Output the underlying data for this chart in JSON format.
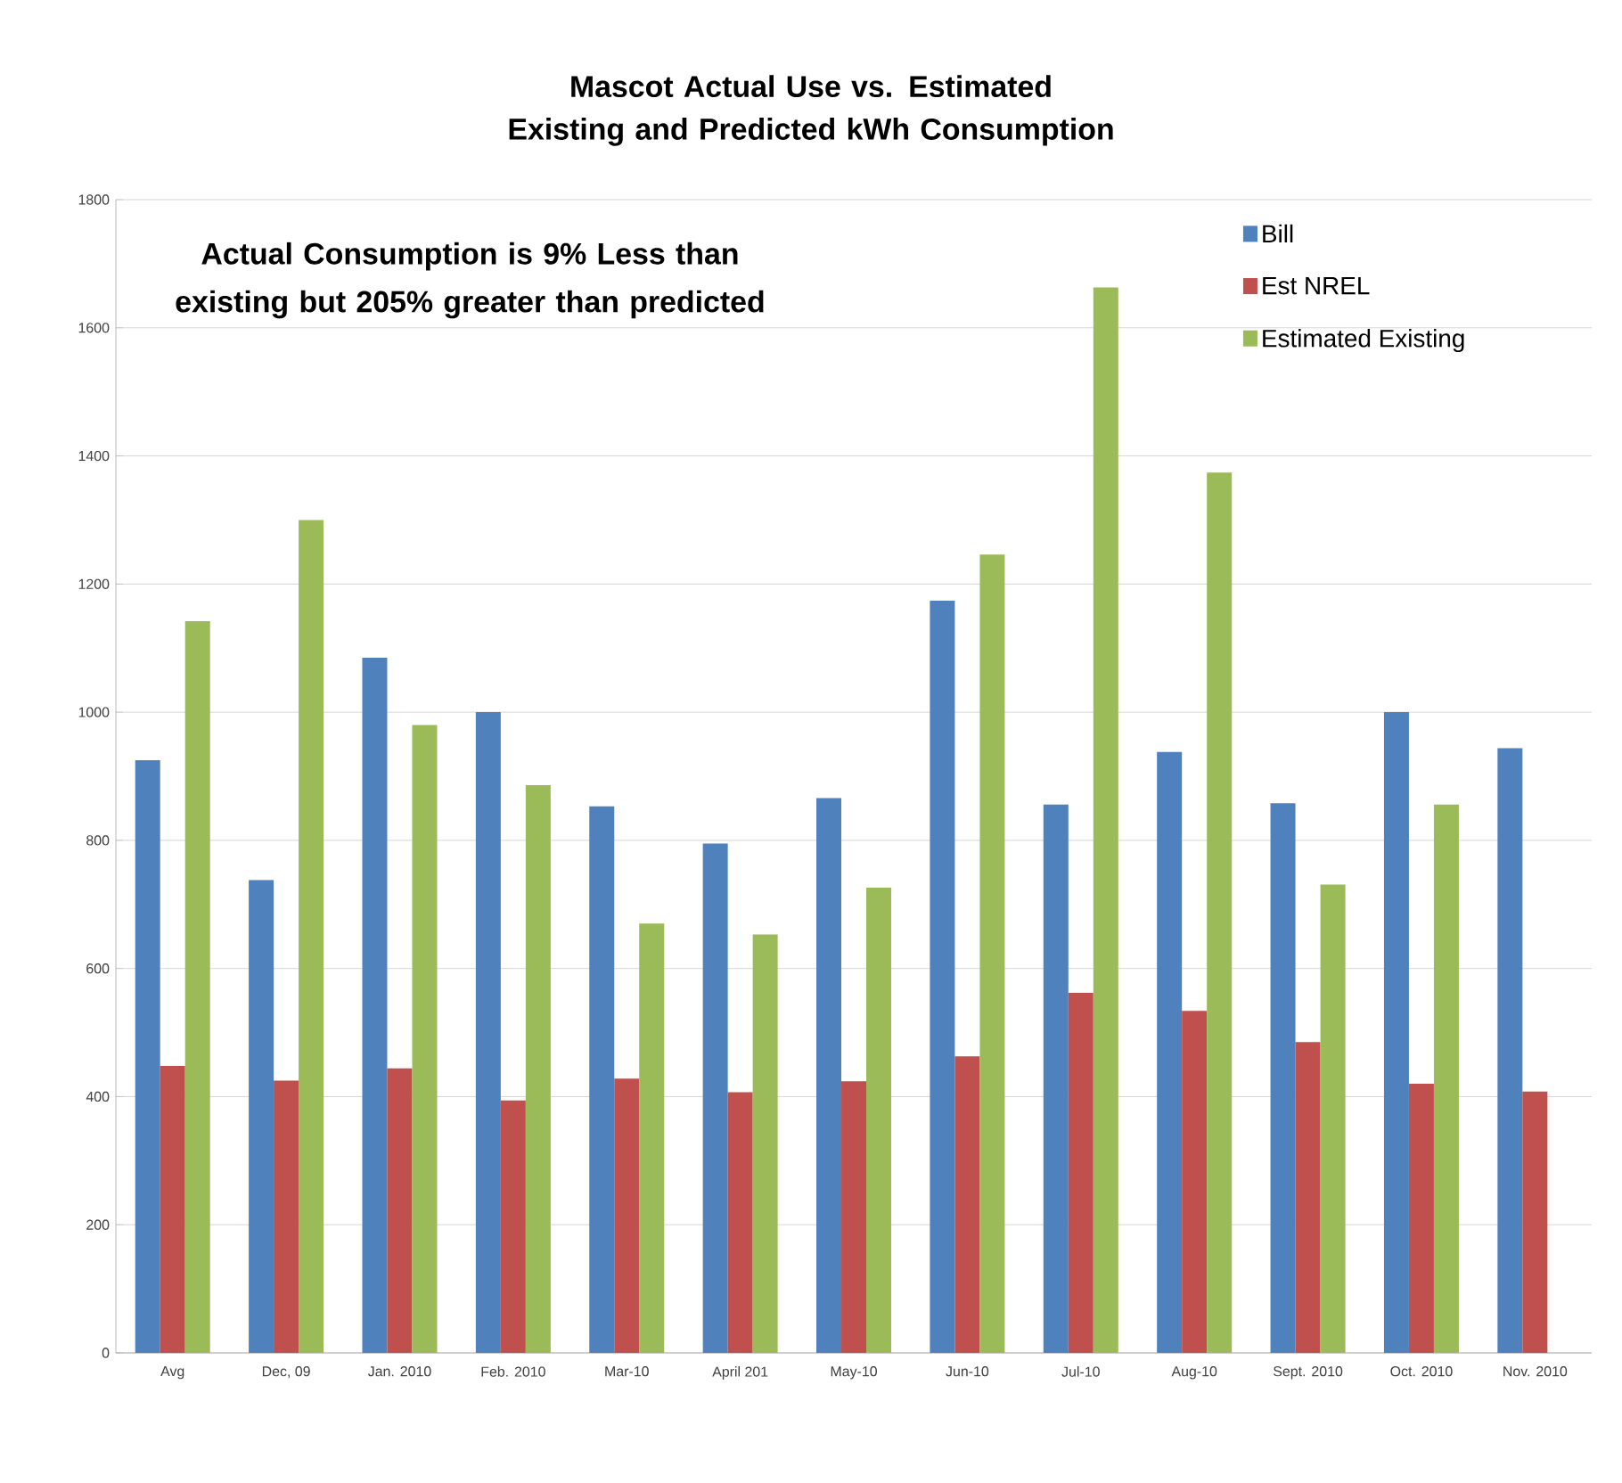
{
  "chart_data": {
    "type": "bar",
    "title": "Mascot Actual Use vs. Estimated Existing and Predicted kWh Consumption",
    "annotations": [
      "Actual Consumption is 9% Less than existing but 205% greater than predicted"
    ],
    "categories": [
      "Avg",
      "Dec, 09",
      "Jan. 2010",
      "Feb. 2010",
      "Mar-10",
      "April 201",
      "May-10",
      "Jun-10",
      "Jul-10",
      "Aug-10",
      "Sept. 2010",
      "Oct. 2010",
      "Nov. 2010"
    ],
    "series": [
      {
        "name": "Bill",
        "color": "#4f81bd",
        "values": [
          925,
          738,
          1085,
          1000,
          853,
          795,
          866,
          1174,
          856,
          938,
          858,
          1000,
          944
        ]
      },
      {
        "name": "Est NREL",
        "color": "#c0504d",
        "values": [
          448,
          425,
          444,
          394,
          428,
          407,
          424,
          463,
          562,
          534,
          485,
          420,
          408
        ]
      },
      {
        "name": "Estimated Existing",
        "color": "#9bbb59",
        "values": [
          1142,
          1300,
          980,
          886,
          670,
          653,
          726,
          1246,
          1663,
          1374,
          731,
          856,
          null
        ]
      }
    ],
    "ylim": [
      0,
      1800
    ],
    "yticks": [
      0,
      200,
      400,
      600,
      800,
      1000,
      1200,
      1400,
      1600,
      1800
    ],
    "grid": "y",
    "legend": "top right"
  }
}
